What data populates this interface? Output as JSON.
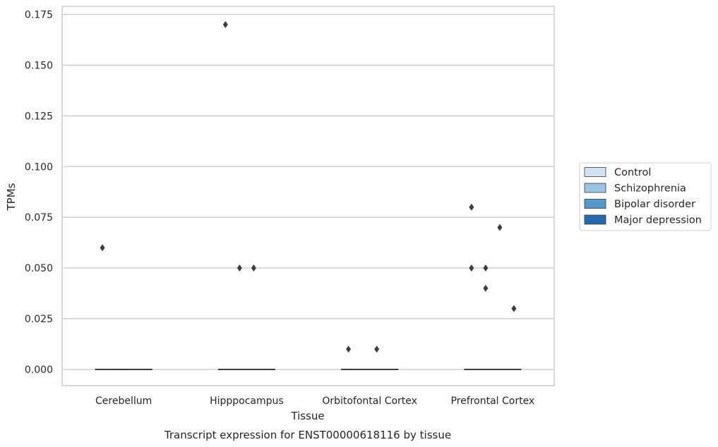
{
  "chart_data": {
    "type": "box",
    "title": "",
    "caption": "Transcript expression for ENST00000618116 by tissue",
    "xlabel": "Tissue",
    "ylabel": "TPMs",
    "ylim": [
      -0.008,
      0.179
    ],
    "yticks": [
      "0.000",
      "0.025",
      "0.050",
      "0.075",
      "0.100",
      "0.125",
      "0.150",
      "0.175"
    ],
    "ytick_values": [
      0,
      0.025,
      0.05,
      0.075,
      0.1,
      0.125,
      0.15,
      0.175
    ],
    "grid": true,
    "legend_position": "right",
    "categories": [
      "Cerebellum",
      "Hipppocampus",
      "Orbitofontal Cortex",
      "Prefrontal Cortex"
    ],
    "series": [
      {
        "name": "Control",
        "color": "#d4e3f1",
        "median": [
          0,
          0,
          0,
          0
        ],
        "q1": [
          0,
          0,
          0,
          0
        ],
        "q3": [
          0,
          0,
          0,
          0
        ],
        "outliers": [
          [
            0.06
          ],
          [
            0.17
          ],
          [
            0.01
          ],
          [
            0.08,
            0.05
          ]
        ]
      },
      {
        "name": "Schizophrenia",
        "color": "#9bc4e0",
        "median": [
          0,
          0,
          0,
          0
        ],
        "q1": [
          0,
          0,
          0,
          0
        ],
        "q3": [
          0,
          0,
          0,
          0
        ],
        "outliers": [
          [],
          [
            0.05
          ],
          [],
          [
            0.05,
            0.04
          ]
        ]
      },
      {
        "name": "Bipolar disorder",
        "color": "#5597c7",
        "median": [
          0,
          0,
          0,
          0
        ],
        "q1": [
          0,
          0,
          0,
          0
        ],
        "q3": [
          0,
          0,
          0,
          0
        ],
        "outliers": [
          [],
          [
            0.05
          ],
          [
            0.01
          ],
          [
            0.07
          ]
        ]
      },
      {
        "name": "Major depression",
        "color": "#2769ad",
        "median": [
          0,
          0,
          0,
          0
        ],
        "q1": [
          0,
          0,
          0,
          0
        ],
        "q3": [
          0,
          0,
          0,
          0
        ],
        "outliers": [
          [],
          [],
          [],
          [
            0.03
          ]
        ]
      }
    ]
  }
}
